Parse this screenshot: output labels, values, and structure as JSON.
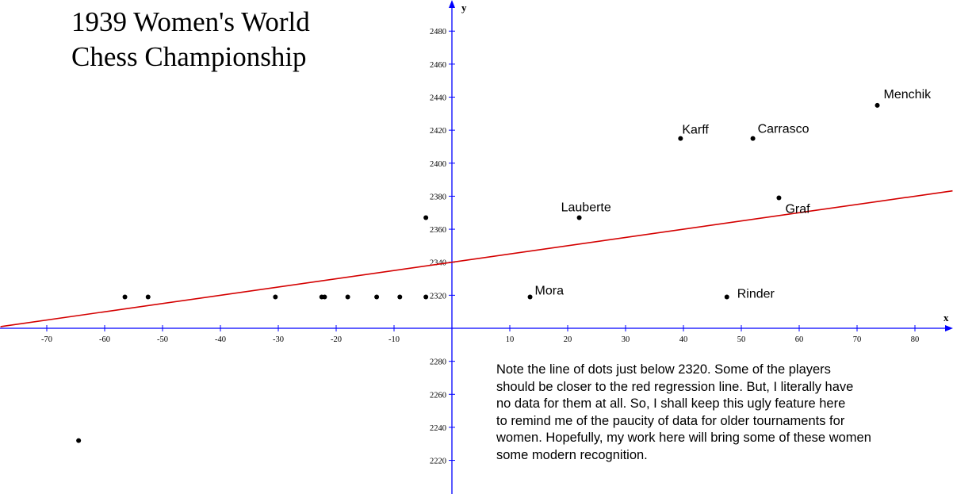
{
  "title_line1": "1939 Women's World",
  "title_line2": "Chess Championship",
  "note_lines": [
    "Note the line of dots just below 2320. Some of the players",
    "should be closer to the red regression line. But, I literally have",
    "no data for them at all. So, I shall keep this ugly feature here",
    "to remind me of the paucity of data for older tournaments for",
    "women. Hopefully, my work here will bring some of these women",
    "some modern recognition."
  ],
  "colors": {
    "axis": "#0000ff",
    "regression": "#d40000",
    "points": "#000000"
  },
  "chart_data": {
    "type": "scatter",
    "xlabel": "x",
    "ylabel": "y",
    "xlim": [
      -78,
      87
    ],
    "ylim": [
      2212,
      2500
    ],
    "axis_crossing_y": 2300,
    "x_ticks": [
      -70,
      -60,
      -50,
      -40,
      -30,
      -20,
      -10,
      10,
      20,
      30,
      40,
      50,
      60,
      70,
      80
    ],
    "y_ticks": [
      2220,
      2240,
      2260,
      2280,
      2320,
      2340,
      2360,
      2380,
      2400,
      2420,
      2440,
      2460,
      2480
    ],
    "grid": false,
    "legend": "none",
    "points": [
      {
        "x": 73.5,
        "y": 2435,
        "label": "Menchik"
      },
      {
        "x": 39.5,
        "y": 2415,
        "label": "Karff"
      },
      {
        "x": 52,
        "y": 2415,
        "label": "Carrasco"
      },
      {
        "x": 56.5,
        "y": 2379,
        "label": "Graf"
      },
      {
        "x": 22,
        "y": 2367,
        "label": "Lauberte"
      },
      {
        "x": 13.5,
        "y": 2319,
        "label": "Mora"
      },
      {
        "x": 47.5,
        "y": 2319,
        "label": "Rinder"
      },
      {
        "x": -4.5,
        "y": 2367,
        "label": ""
      },
      {
        "x": -56.5,
        "y": 2319,
        "label": ""
      },
      {
        "x": -52.5,
        "y": 2319,
        "label": ""
      },
      {
        "x": -30.5,
        "y": 2319,
        "label": ""
      },
      {
        "x": -22.5,
        "y": 2319,
        "label": ""
      },
      {
        "x": -22,
        "y": 2319,
        "label": ""
      },
      {
        "x": -18,
        "y": 2319,
        "label": ""
      },
      {
        "x": -13,
        "y": 2319,
        "label": ""
      },
      {
        "x": -9,
        "y": 2319,
        "label": ""
      },
      {
        "x": -4.5,
        "y": 2319,
        "label": ""
      },
      {
        "x": -64.5,
        "y": 2232,
        "label": ""
      }
    ],
    "regression_line": {
      "slope": 0.5,
      "intercept": 2340
    }
  }
}
